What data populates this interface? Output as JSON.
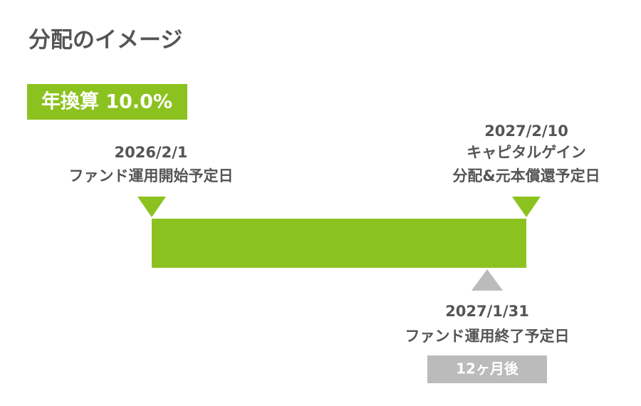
{
  "title": "分配のイメージ",
  "badge": "年換算 10.0%",
  "start": {
    "date": "2026/2/1",
    "label": "ファンド運用開始予定日"
  },
  "end": {
    "date": "2027/2/10",
    "lines": [
      "キャピタルゲイン",
      "分配&元本償還予定日"
    ]
  },
  "maturity": {
    "date": "2027/1/31",
    "label": "ファンド運用終了予定日",
    "duration": "12ヶ月後"
  }
}
